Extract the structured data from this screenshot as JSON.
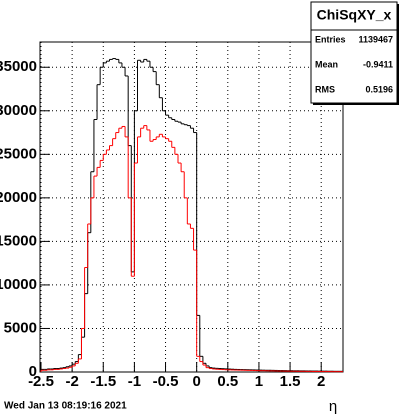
{
  "chart_data": {
    "type": "histogram",
    "title": "ChiSqXY_x",
    "x_label": "η",
    "timestamp": "Wed Jan 13 08:19:16 2021",
    "stats": {
      "entries_label": "Entries",
      "entries": 1139467,
      "mean_label": "Mean",
      "mean": -0.9411,
      "rms_label": "RMS",
      "rms": 0.5196
    },
    "bins": [
      -2.5,
      -2.45,
      -2.4,
      -2.35,
      -2.3,
      -2.25,
      -2.2,
      -2.15,
      -2.1,
      -2.05,
      -2,
      -1.95,
      -1.9,
      -1.85,
      -1.8,
      -1.75,
      -1.7,
      -1.65,
      -1.6,
      -1.55,
      -1.5,
      -1.45,
      -1.4,
      -1.35,
      -1.3,
      -1.25,
      -1.2,
      -1.15,
      -1.1,
      -1.05,
      -1,
      -0.95,
      -0.9,
      -0.85,
      -0.8,
      -0.75,
      -0.7,
      -0.65,
      -0.6,
      -0.55,
      -0.5,
      -0.45,
      -0.4,
      -0.35,
      -0.3,
      -0.25,
      -0.2,
      -0.15,
      -0.1,
      -0.05,
      0,
      0.05,
      0.1,
      0.15,
      0.2,
      0.25,
      0.3,
      0.35,
      0.4,
      0.45,
      0.5,
      0.55,
      0.6,
      0.65,
      0.7,
      0.75,
      0.8,
      0.85,
      0.9,
      0.95,
      1,
      1.05,
      1.1,
      1.15,
      1.2,
      1.25,
      1.3,
      1.35,
      1.4,
      1.45,
      1.5,
      1.55,
      1.6,
      1.65,
      1.7,
      1.75,
      1.8,
      1.85,
      1.9,
      1.95,
      2,
      2.05,
      2.1,
      2.15,
      2.2,
      2.25,
      2.3,
      2.35
    ],
    "series": [
      {
        "color": "#000000",
        "values": [
          300,
          300,
          350,
          350,
          400,
          400,
          450,
          500,
          600,
          700,
          900,
          1200,
          2000,
          4000,
          9000,
          16000,
          23000,
          29000,
          33000,
          35000,
          35500,
          35700,
          35900,
          36000,
          35900,
          35500,
          35000,
          34000,
          26000,
          11500,
          30000,
          35800,
          35600,
          35900,
          35700,
          35000,
          34500,
          33000,
          31500,
          30000,
          29500,
          29200,
          29000,
          28800,
          28700,
          28500,
          28400,
          28300,
          28000,
          27500,
          6500,
          1800,
          1000,
          700,
          500,
          450,
          420,
          400,
          380,
          360,
          340,
          320,
          300,
          290,
          280,
          270,
          260,
          250,
          240,
          230,
          220,
          210,
          200,
          200,
          190,
          180,
          170,
          170,
          160,
          150,
          150,
          140,
          140,
          130,
          130,
          120,
          120,
          110,
          110,
          100,
          100,
          100,
          90,
          90,
          80,
          80,
          80
        ]
      },
      {
        "color": "#ff0000",
        "values": [
          200,
          200,
          250,
          250,
          300,
          300,
          350,
          400,
          450,
          550,
          700,
          1000,
          1500,
          5000,
          12000,
          17000,
          20000,
          22500,
          23500,
          24300,
          25000,
          25500,
          26000,
          26800,
          27500,
          28000,
          28200,
          27000,
          20000,
          11000,
          24000,
          27000,
          28000,
          28300,
          27800,
          26500,
          26700,
          27000,
          27300,
          27000,
          26800,
          26500,
          25800,
          25000,
          24000,
          23000,
          20000,
          17000,
          16500,
          14000,
          1800,
          1200,
          800,
          500,
          400,
          350,
          320,
          300,
          280,
          260,
          250,
          240,
          230,
          220,
          210,
          200,
          190,
          180,
          170,
          160,
          150,
          150,
          140,
          130,
          130,
          120,
          110,
          110,
          100,
          100,
          90,
          90,
          80,
          80,
          80,
          70,
          70,
          60,
          60,
          60,
          50,
          50,
          50,
          40,
          40,
          40,
          40
        ]
      }
    ],
    "xlim": [
      -2.5,
      2.35
    ],
    "ylim": [
      0,
      37900
    ],
    "xticks": [
      -2.5,
      -2,
      -1.5,
      -1,
      -0.5,
      0,
      0.5,
      1,
      1.5,
      2
    ],
    "yticks": [
      0,
      5000,
      10000,
      15000,
      20000,
      25000,
      30000,
      35000
    ],
    "grid": true
  }
}
